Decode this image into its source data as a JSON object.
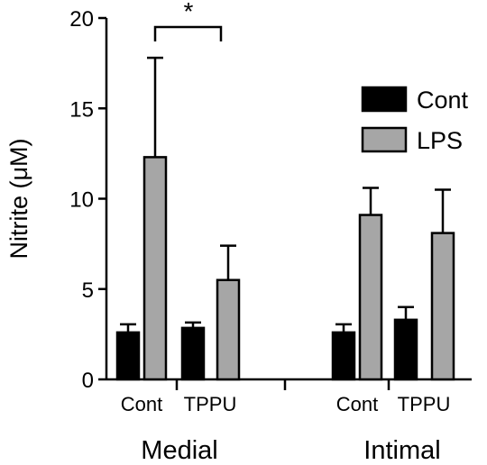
{
  "chart_data": {
    "type": "bar",
    "ylabel": "Nitrite (μM)",
    "ylim": [
      0,
      20
    ],
    "yticks": [
      0,
      5,
      10,
      15,
      20
    ],
    "groups": [
      {
        "label": "Medial",
        "subcategories": [
          "Cont",
          "TPPU"
        ]
      },
      {
        "label": "Intimal",
        "subcategories": [
          "Cont",
          "TPPU"
        ]
      }
    ],
    "series": [
      {
        "name": "Cont",
        "color": "#000000",
        "values": [
          2.6,
          2.85,
          2.6,
          3.3
        ],
        "errors": [
          0.45,
          0.3,
          0.45,
          0.7
        ]
      },
      {
        "name": "LPS",
        "color": "#a6a6a6",
        "values": [
          12.3,
          5.5,
          9.1,
          8.1
        ],
        "errors": [
          5.5,
          1.9,
          1.5,
          2.4
        ]
      }
    ],
    "legend_position": "top-right",
    "significance": [
      {
        "text": "*",
        "between": [
          "Medial Cont LPS",
          "Medial TPPU"
        ]
      }
    ]
  }
}
